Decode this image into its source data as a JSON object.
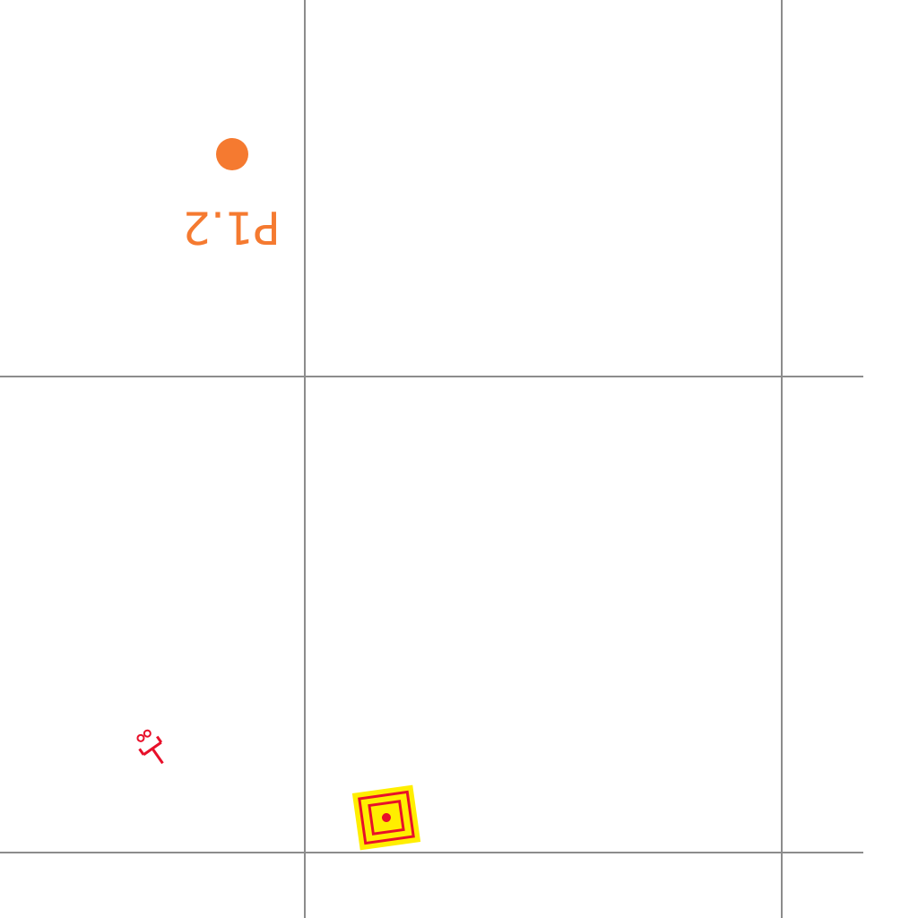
{
  "map": {
    "background_color": "#ffffff",
    "grid_color": "#8c8c8c",
    "point_color": "#f57a30",
    "symbol_red": "#e8102a",
    "symbol_yellow": "#ffee00",
    "point_marker": {
      "label": "P1.2"
    },
    "small_marker": {
      "label": "⊤8"
    },
    "target_marker": {
      "icon": "concentric-square-target-icon"
    }
  }
}
